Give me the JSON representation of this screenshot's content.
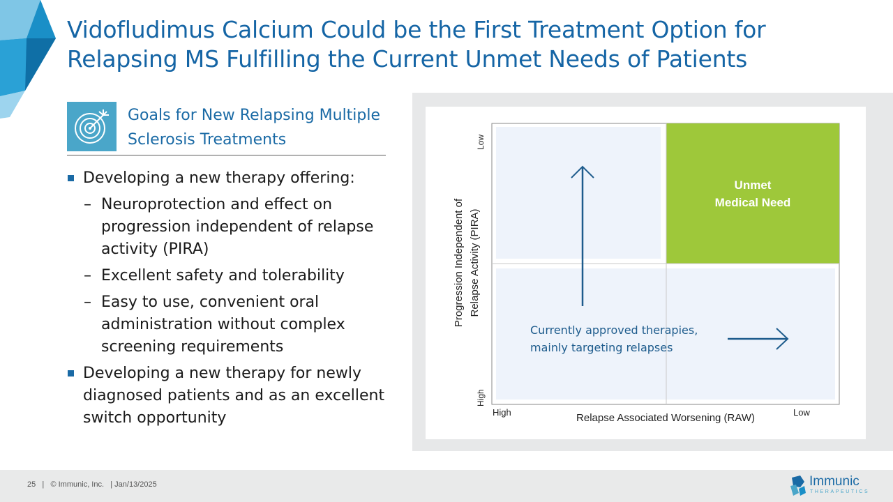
{
  "slide": {
    "title": "Vidofludimus Calcium Could be the First Treatment Option for Relapsing MS Fulfilling the Current Unmet Needs of Patients"
  },
  "goals": {
    "heading": "Goals for New Relapsing Multiple Sclerosis Treatments",
    "icon": "target-icon"
  },
  "bullets": [
    {
      "text": "Developing a new therapy offering:",
      "subs": [
        "Neuroprotection and effect on progression independent of relapse activity (PIRA)",
        "Excellent safety and tolerability",
        "Easy to use, convenient oral administration without complex screening requirements"
      ]
    },
    {
      "text": "Developing a new therapy for newly diagnosed patients and as an excellent switch opportunity",
      "subs": []
    }
  ],
  "matrix": {
    "y_label_line1": "Progression Independent of",
    "y_label_line2": "Relapse Activity (PIRA)",
    "y_top": "Low",
    "y_bottom": "High",
    "x_label": "Relapse Associated Worsening (RAW)",
    "x_left": "High",
    "x_right": "Low",
    "unmet_line1": "Unmet",
    "unmet_line2": "Medical Need",
    "approved_line1": "Currently approved therapies,",
    "approved_line2": "mainly targeting relapses",
    "colors": {
      "unmet": "#9ec83a",
      "approved_region": "#eef3fb",
      "arrow": "#1d5b8c"
    }
  },
  "footer": {
    "page_number": "25",
    "copyright": "© Immunic, Inc.",
    "date": "Jan/13/2025",
    "logo_name": "Immunic",
    "logo_sub": "THERAPEUTICS"
  },
  "colors": {
    "title": "#1565a5",
    "accent": "#4aa6c9"
  }
}
